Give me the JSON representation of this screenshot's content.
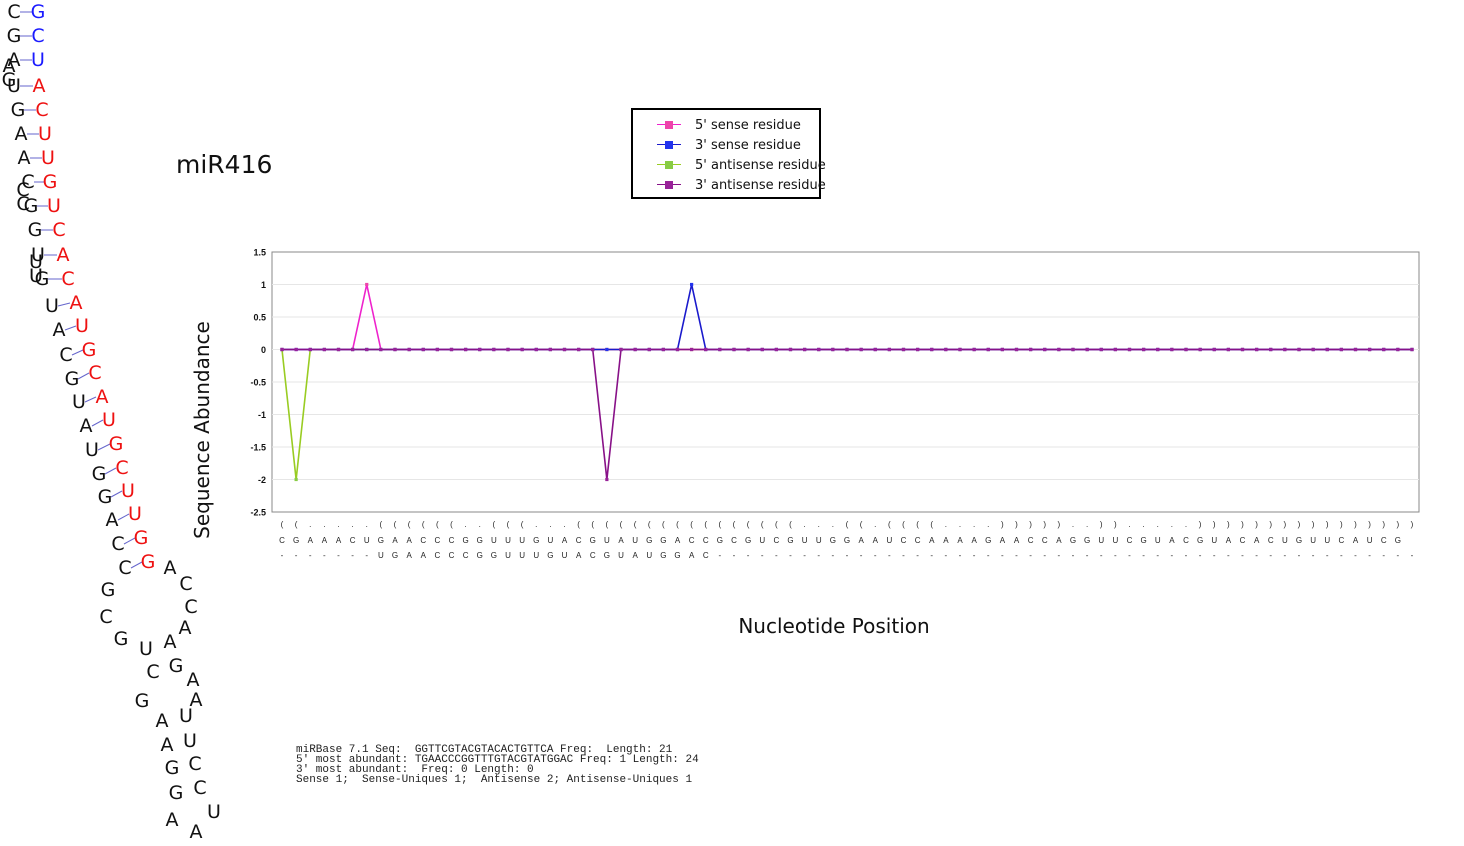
{
  "title": "miR416",
  "structure": {
    "pairs": [
      {
        "l": "C",
        "r": "G",
        "lc": "#111111",
        "rc": "#1a1aff",
        "l2": ""
      },
      {
        "l": "G",
        "r": "C",
        "lc": "#111111",
        "rc": "#1a1aff",
        "l2": ""
      },
      {
        "l": "A",
        "r": "U",
        "lc": "#111111",
        "rc": "#1a1aff",
        "l2": "A"
      },
      {
        "l": "U",
        "r": "A",
        "lc": "#111111",
        "rc": "#ee1111",
        "l2": "G"
      },
      {
        "l": "G",
        "r": "C",
        "lc": "#111111",
        "rc": "#ee1111",
        "l2": ""
      },
      {
        "l": "A",
        "r": "U",
        "lc": "#111111",
        "rc": "#ee1111",
        "l2": ""
      },
      {
        "l": "A",
        "r": "U",
        "lc": "#111111",
        "rc": "#ee1111",
        "l2": ""
      },
      {
        "l": "C",
        "r": "G",
        "lc": "#111111",
        "rc": "#ee1111",
        "l2": "C"
      },
      {
        "l": "G",
        "r": "U",
        "lc": "#111111",
        "rc": "#ee1111",
        "l2": "C"
      },
      {
        "l": "G",
        "r": "C",
        "lc": "#111111",
        "rc": "#ee1111",
        "l2": ""
      },
      {
        "l": "U",
        "r": "A",
        "lc": "#111111",
        "rc": "#ee1111",
        "l2": "U"
      },
      {
        "l": "G",
        "r": "C",
        "lc": "#111111",
        "rc": "#ee1111",
        "l2": "U"
      },
      {
        "l": "U",
        "r": "A",
        "lc": "#111111",
        "rc": "#ee1111",
        "l2": ""
      },
      {
        "l": "A",
        "r": "U",
        "lc": "#111111",
        "rc": "#ee1111",
        "l2": ""
      },
      {
        "l": "C",
        "r": "G",
        "lc": "#111111",
        "rc": "#ee1111",
        "l2": ""
      },
      {
        "l": "G",
        "r": "C",
        "lc": "#111111",
        "rc": "#ee1111",
        "l2": ""
      },
      {
        "l": "U",
        "r": "A",
        "lc": "#111111",
        "rc": "#ee1111",
        "l2": ""
      },
      {
        "l": "A",
        "r": "U",
        "lc": "#111111",
        "rc": "#ee1111",
        "l2": ""
      },
      {
        "l": "U",
        "r": "G",
        "lc": "#111111",
        "rc": "#ee1111",
        "l2": ""
      },
      {
        "l": "G",
        "r": "C",
        "lc": "#111111",
        "rc": "#ee1111",
        "l2": ""
      },
      {
        "l": "G",
        "r": "U",
        "lc": "#111111",
        "rc": "#ee1111",
        "l2": ""
      },
      {
        "l": "A",
        "r": "U",
        "lc": "#111111",
        "rc": "#ee1111",
        "l2": ""
      },
      {
        "l": "C",
        "r": "G",
        "lc": "#111111",
        "rc": "#ee1111",
        "l2": ""
      },
      {
        "l": "C",
        "r": "G",
        "lc": "#111111",
        "rc": "#ee1111",
        "l2": ""
      }
    ],
    "lower": [
      {
        "t": "A"
      },
      {
        "t": "C"
      },
      {
        "t": "C"
      },
      {
        "t": "A"
      },
      {
        "t": "G"
      },
      {
        "t": "C"
      },
      {
        "t": "G"
      },
      {
        "t": "U"
      },
      {
        "t": "A"
      },
      {
        "t": "C"
      },
      {
        "t": "G"
      },
      {
        "t": "A"
      },
      {
        "t": "A"
      },
      {
        "t": "G"
      },
      {
        "t": "U"
      },
      {
        "t": "A"
      },
      {
        "t": "U"
      },
      {
        "t": "A"
      },
      {
        "t": "G"
      },
      {
        "t": "C"
      },
      {
        "t": "G"
      },
      {
        "t": "C"
      },
      {
        "t": "A"
      },
      {
        "t": "A"
      },
      {
        "t": "U"
      }
    ],
    "pair_line_color": "#6666cc"
  },
  "chart_data": {
    "type": "line",
    "ylabel": "Sequence Abundance",
    "xlabel": "Nucleotide Position",
    "ylim": [
      -2.5,
      1.5
    ],
    "yticks": [
      "1.5",
      "1",
      "0.5",
      "0",
      "-0.5",
      "-1",
      "-1.5",
      "-2",
      "-2.5"
    ],
    "grid": true,
    "legend_position": "top-center",
    "n_positions": 81,
    "series": [
      {
        "name": "5' sense residue",
        "color": "#ee22cc",
        "marker_color": "#ee44aa",
        "points": [
          {
            "x": 6,
            "y": 1
          }
        ]
      },
      {
        "name": "3' sense residue",
        "color": "#1a1acc",
        "marker_color": "#2233ee",
        "points": [
          {
            "x": 29,
            "y": 1
          }
        ]
      },
      {
        "name": "5' antisense residue",
        "color": "#99cc22",
        "marker_color": "#88cc44",
        "points": [
          {
            "x": 1,
            "y": -2
          },
          {
            "x": 23,
            "y": 0
          }
        ]
      },
      {
        "name": "3' antisense residue",
        "color": "#881188",
        "marker_color": "#992299",
        "points": [
          {
            "x": 23,
            "y": -2
          }
        ]
      }
    ],
    "row_structure": "((.....((((((..(((...((((((((((((((((...((.((((....)))))..)).....)))))))))))))))))))))",
    "row_sequence": "CGAAACUGAACCCGGUUUGUACGUAUGGACCGCGUCGUUGGAAUCCAAAAGAACCAGGUUCGUACGUACACUGUUCAUCG",
    "row_read": "-------UGAACCCGGUUUGUACGUAUGGAC--------------------------------------------------"
  },
  "info_lines": [
    "miRBase 7.1 Seq:  GGTTCGTACGTACACTGTTCA Freq:  Length: 21",
    "5' most abundant: TGAACCCGGTTTGTACGTATGGAC Freq: 1 Length: 24",
    "3' most abundant:  Freq: 0 Length: 0",
    "Sense 1;  Sense-Uniques 1;  Antisense 2; Antisense-Uniques 1"
  ]
}
